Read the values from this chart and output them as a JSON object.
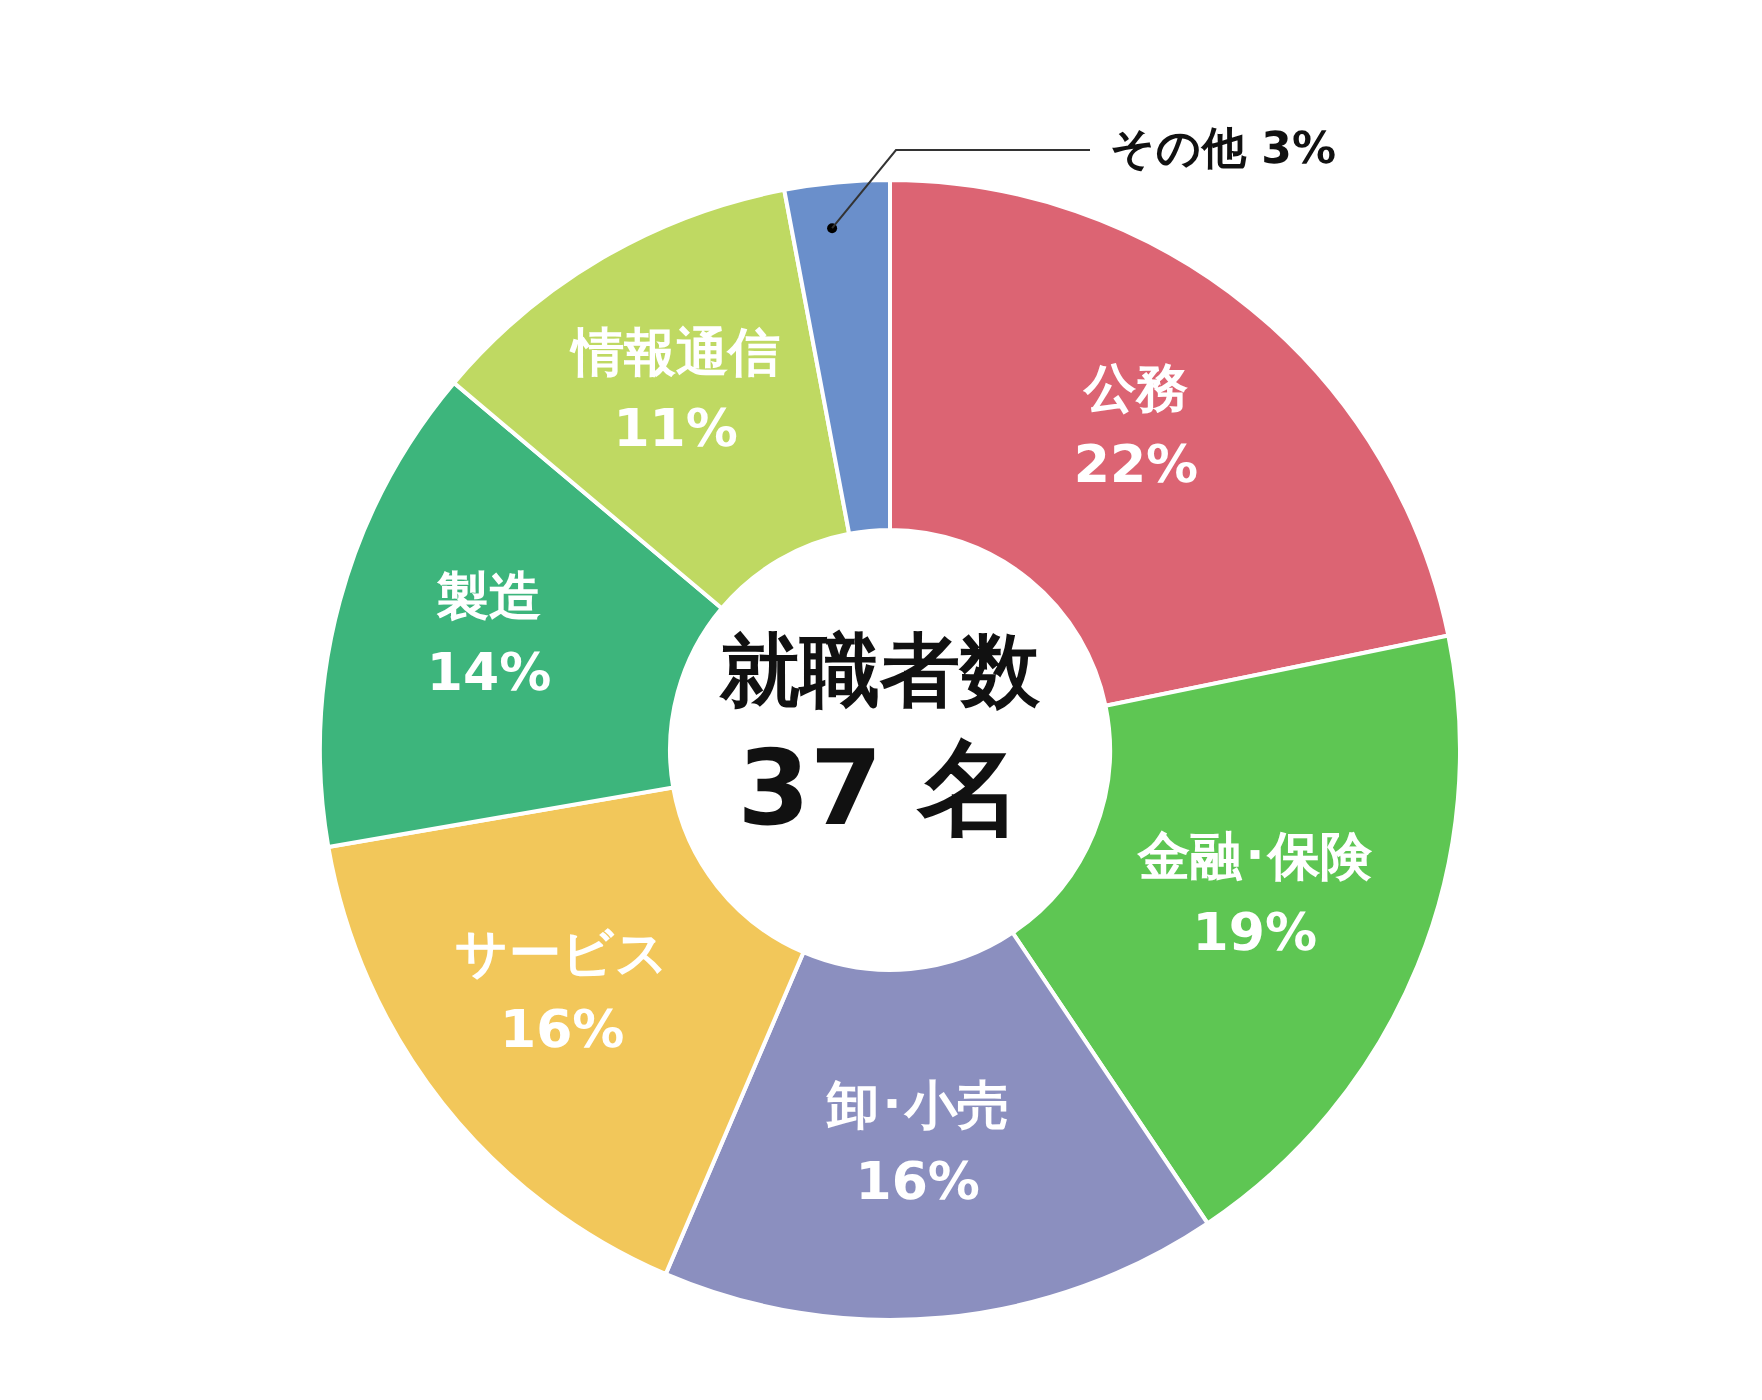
{
  "chart_data": {
    "type": "donut",
    "title": "就職者数",
    "subtitle": "37 名",
    "categories": [
      "公務",
      "金融･保険",
      "卸･小売",
      "サービス",
      "製造",
      "情報通信",
      "その他"
    ],
    "value_labels": [
      "22%",
      "19%",
      "16%",
      "16%",
      "14%",
      "11%",
      "3%"
    ],
    "values": [
      22,
      19,
      16,
      16,
      14,
      11,
      3
    ],
    "colors": [
      "#dc6473",
      "#5ec653",
      "#8b8fbf",
      "#f2c75a",
      "#3db57c",
      "#bfd962",
      "#6a8fcb"
    ],
    "legend": false
  }
}
